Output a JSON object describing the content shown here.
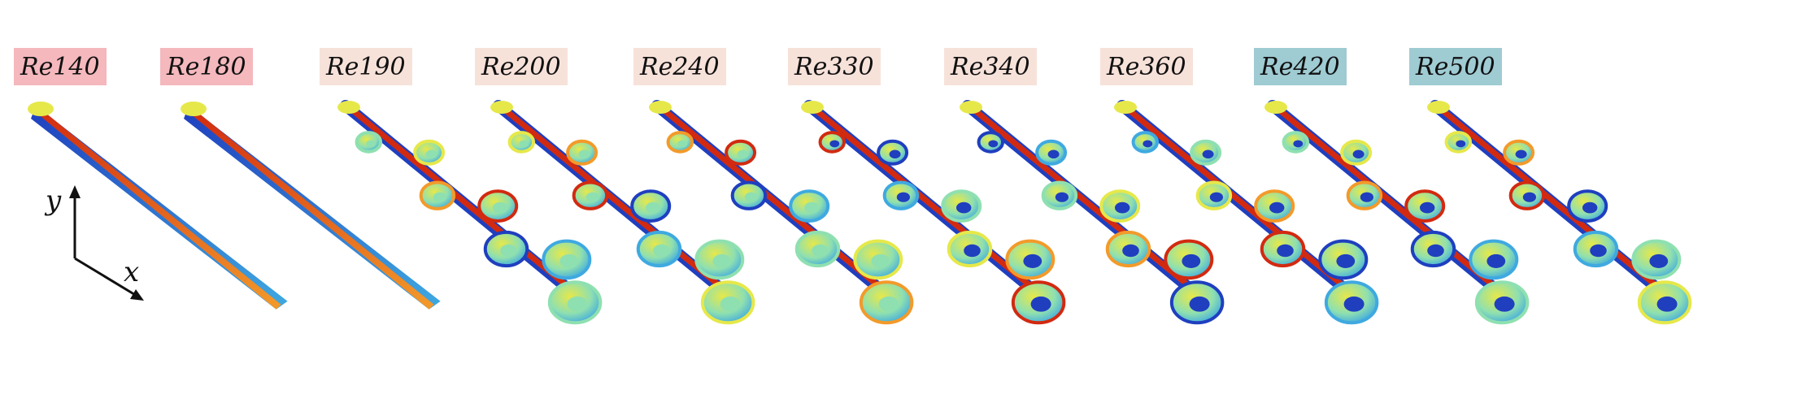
{
  "panels": [
    {
      "label": "Re140",
      "tag_color": "#f4b8bd"
    },
    {
      "label": "Re180",
      "tag_color": "#f4b8bd"
    },
    {
      "label": "Re190",
      "tag_color": "#f7e2da"
    },
    {
      "label": "Re200",
      "tag_color": "#f7e2da"
    },
    {
      "label": "Re240",
      "tag_color": "#f7e2da"
    },
    {
      "label": "Re330",
      "tag_color": "#f7e2da"
    },
    {
      "label": "Re340",
      "tag_color": "#f7e2da"
    },
    {
      "label": "Re360",
      "tag_color": "#f7e2da"
    },
    {
      "label": "Re420",
      "tag_color": "#9fcbd3"
    },
    {
      "label": "Re500",
      "tag_color": "#9fcbd3"
    }
  ],
  "axes": {
    "y_label": "y",
    "x_label": "x"
  },
  "colormap": [
    "#1f3fbf",
    "#3fa9e0",
    "#8fe0b0",
    "#e6e84a",
    "#f39a2a",
    "#d22a10"
  ]
}
